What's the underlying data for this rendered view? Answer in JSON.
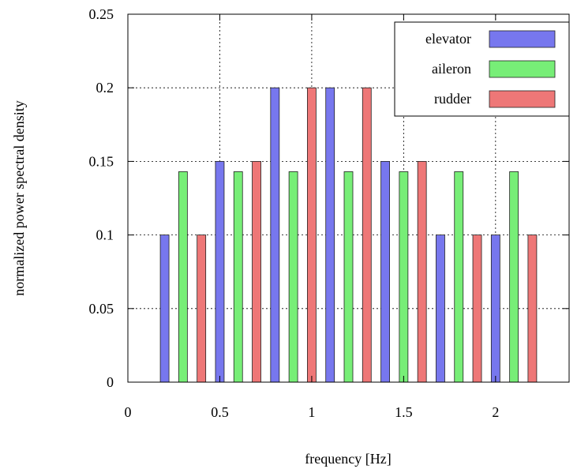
{
  "chart_data": {
    "type": "bar",
    "title": "",
    "xlabel": "frequency [Hz]",
    "ylabel": "normalized power spectral density",
    "xlim": [
      0,
      2.4
    ],
    "ylim": [
      0,
      0.25
    ],
    "xticks": [
      "0",
      "0.5",
      "1",
      "1.5",
      "2"
    ],
    "yticks": [
      "0",
      "0.05",
      "0.1",
      "0.15",
      "0.2",
      "0.25"
    ],
    "grid": true,
    "legend_position": "top-right",
    "series": [
      {
        "name": "elevator",
        "color": "#7777ee",
        "x": [
          0.2,
          0.5,
          0.8,
          1.1,
          1.4,
          1.7,
          2.0
        ],
        "values": [
          0.1,
          0.15,
          0.2,
          0.2,
          0.15,
          0.1,
          0.1
        ]
      },
      {
        "name": "aileron",
        "color": "#77ee77",
        "x": [
          0.3,
          0.6,
          0.9,
          1.2,
          1.5,
          1.8,
          2.1
        ],
        "values": [
          0.143,
          0.143,
          0.143,
          0.143,
          0.143,
          0.143,
          0.143
        ]
      },
      {
        "name": "rudder",
        "color": "#ee7777",
        "x": [
          0.4,
          0.7,
          1.0,
          1.3,
          1.6,
          1.9,
          2.2
        ],
        "values": [
          0.1,
          0.15,
          0.2,
          0.2,
          0.15,
          0.1,
          0.1
        ]
      }
    ]
  }
}
